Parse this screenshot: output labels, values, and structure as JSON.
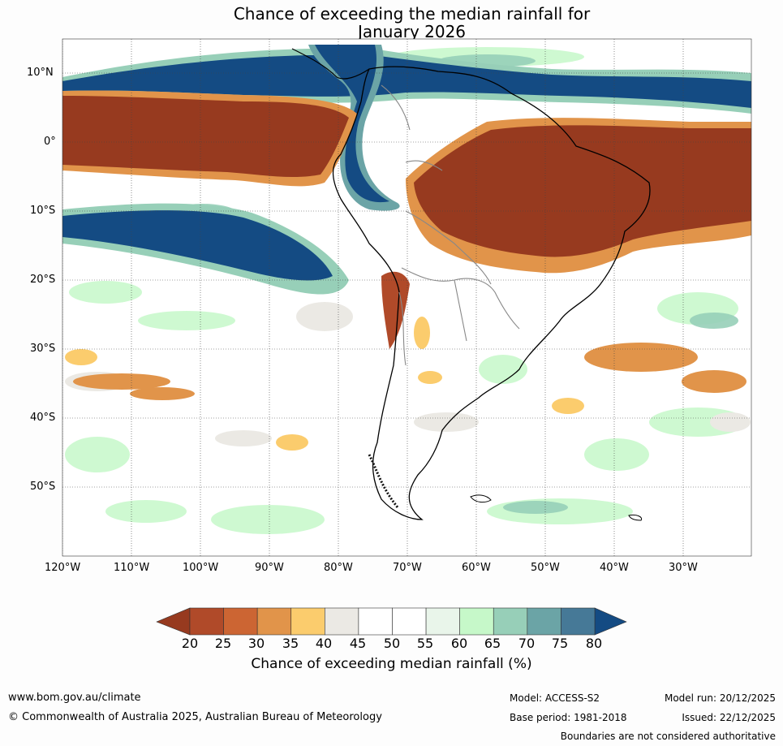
{
  "title": {
    "line1": "Chance of exceeding the median rainfall for",
    "line2": "January 2026"
  },
  "map": {
    "lat_labels": [
      "10°N",
      "0°",
      "10°S",
      "20°S",
      "30°S",
      "40°S",
      "50°S"
    ],
    "lon_labels": [
      "120°W",
      "110°W",
      "100°W",
      "90°W",
      "80°W",
      "70°W",
      "60°W",
      "50°W",
      "40°W",
      "30°W"
    ]
  },
  "colorbar": {
    "ticks": [
      "20",
      "25",
      "30",
      "35",
      "40",
      "45",
      "50",
      "55",
      "60",
      "65",
      "70",
      "75",
      "80"
    ],
    "colors": [
      "#973a1f",
      "#b04a29",
      "#cc6533",
      "#e1944a",
      "#fbcc6d",
      "#ebe9e4",
      "#ffffff",
      "#ffffff",
      "#e9f5ea",
      "#c6f8c9",
      "#97cfb8",
      "#6ba4a6",
      "#467997",
      "#144b83"
    ],
    "label": "Chance of exceeding median rainfall (%)"
  },
  "footer": {
    "url": "www.bom.gov.au/climate",
    "copyright": "© Commonwealth of Australia 2025, Australian Bureau of Meteorology",
    "model": "Model: ACCESS-S2",
    "base_period": "Base period: 1981-2018",
    "model_run": "Model run: 20/12/2025",
    "issued": "Issued: 22/12/2025",
    "disclaimer": "Boundaries are not considered authoritative"
  }
}
